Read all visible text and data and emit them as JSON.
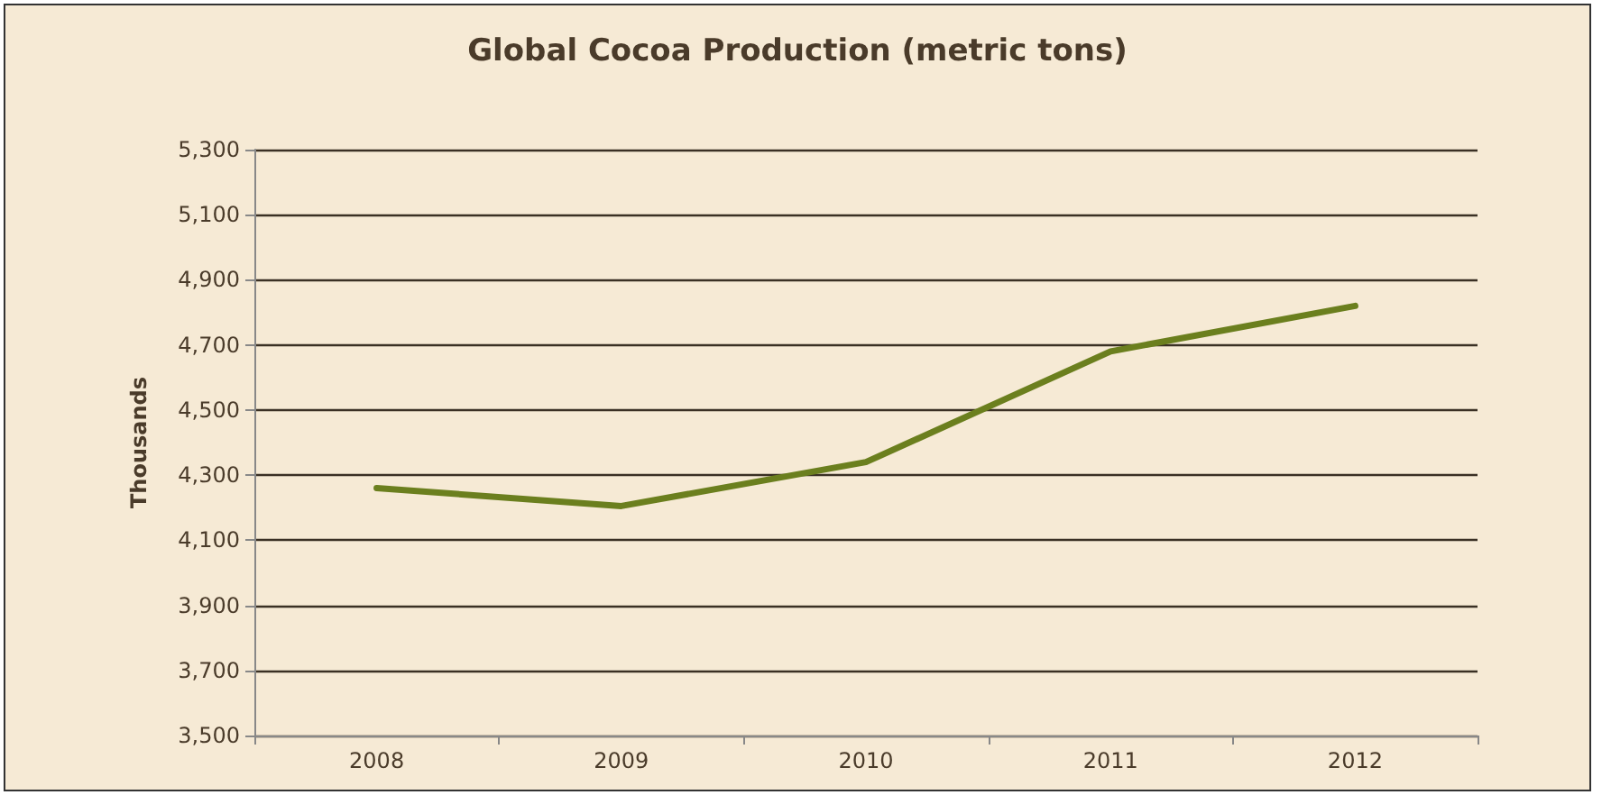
{
  "chart_data": {
    "type": "line",
    "title": "Global Cocoa Production (metric tons)",
    "ylabel": "Thousands",
    "categories": [
      "2008",
      "2009",
      "2010",
      "2011",
      "2012"
    ],
    "series": [
      {
        "color": "#6b7f1e",
        "values": [
          4260,
          4205,
          4340,
          4680,
          4820
        ]
      }
    ],
    "ylim": [
      3500,
      5300
    ],
    "yticks": [
      {
        "value": 3500,
        "label": "3,500"
      },
      {
        "value": 3700,
        "label": "3,700"
      },
      {
        "value": 3900,
        "label": "3,900"
      },
      {
        "value": 4100,
        "label": "4,100"
      },
      {
        "value": 4300,
        "label": "4,300"
      },
      {
        "value": 4500,
        "label": "4,500"
      },
      {
        "value": 4700,
        "label": "4,700"
      },
      {
        "value": 4900,
        "label": "4,900"
      },
      {
        "value": 5100,
        "label": "5,100"
      },
      {
        "value": 5300,
        "label": "5,300"
      }
    ],
    "grid": "y",
    "marker": "none",
    "line_style": "solid"
  }
}
